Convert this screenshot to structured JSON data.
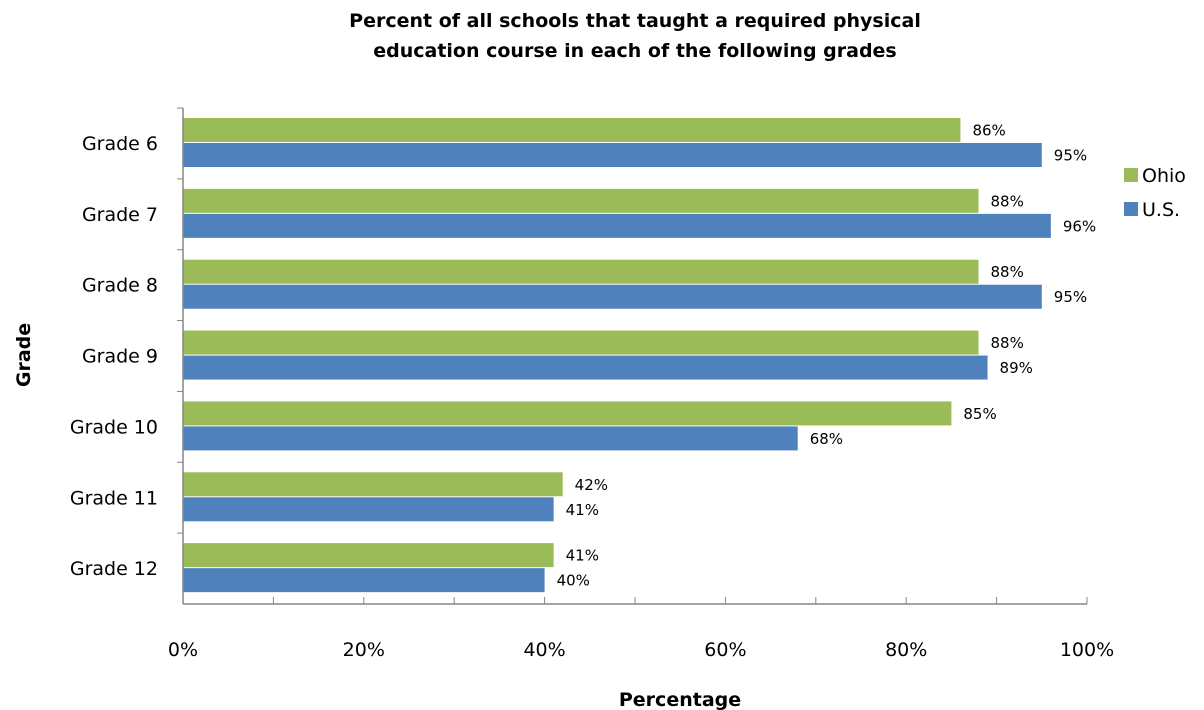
{
  "chart_data": {
    "type": "bar",
    "orientation": "horizontal",
    "title": {
      "line1": "Percent of all schools that taught a required physical",
      "line2": "education course in each of the following grades"
    },
    "xlabel": "Percentage",
    "ylabel": "Grade",
    "xlim": [
      0,
      100
    ],
    "x_tick_labels": [
      "0%",
      "20%",
      "40%",
      "60%",
      "80%",
      "100%"
    ],
    "categories": [
      "Grade 6",
      "Grade 7",
      "Grade 8",
      "Grade 9",
      "Grade 10",
      "Grade 11",
      "Grade 12"
    ],
    "series": [
      {
        "name": "Ohio",
        "color": "#9bbb59",
        "values": [
          86,
          88,
          88,
          88,
          85,
          42,
          41
        ],
        "data_labels": [
          "86%",
          "88%",
          "88%",
          "88%",
          "85%",
          "42%",
          "41%"
        ]
      },
      {
        "name": "U.S.",
        "color": "#4f81bd",
        "values": [
          95,
          96,
          95,
          89,
          68,
          41,
          40
        ],
        "data_labels": [
          "95%",
          "96%",
          "95%",
          "89%",
          "68%",
          "41%",
          "40%"
        ]
      }
    ],
    "legend_position": "right",
    "grid": false
  }
}
